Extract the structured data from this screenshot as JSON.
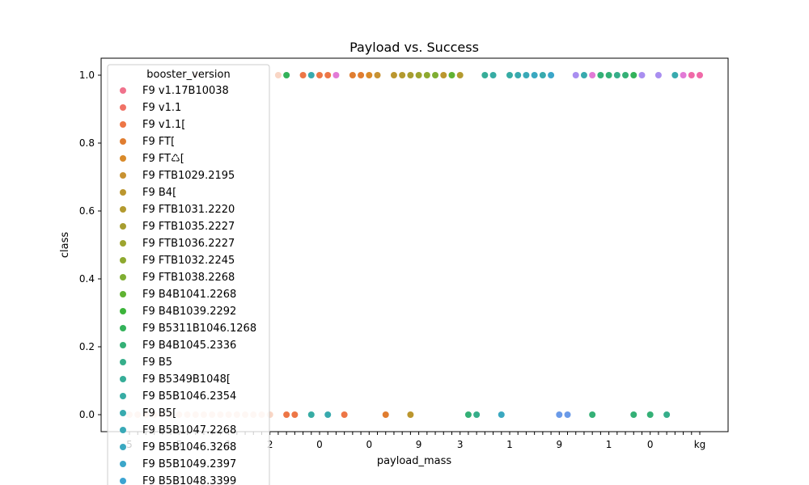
{
  "chart_data": {
    "type": "scatter",
    "title": "Payload vs. Success",
    "xlabel": "payload_mass",
    "ylabel": "class",
    "ylim": [
      -0.05,
      1.05
    ],
    "yticks": [
      0.0,
      0.2,
      0.4,
      0.6,
      0.8,
      1.0
    ],
    "ytick_labels": [
      "0.0",
      "0.2",
      "0.4",
      "0.6",
      "0.8",
      "1.0"
    ],
    "x_axis": "categorical, 70 payload mass categories (index 0-69); tick labels overlap and are illegible",
    "xtick_labels_visible": [
      "5",
      "5",
      "1",
      "2",
      "0",
      "0",
      "9",
      "3",
      "1",
      "9",
      "1",
      "0",
      "kg"
    ],
    "grid": false,
    "legend": {
      "title": "booster_version",
      "placement": "upper-left",
      "entries": [
        {
          "label": "F9 v1.17B10038",
          "color": "#f0728c"
        },
        {
          "label": "F9 v1.1",
          "color": "#f07266"
        },
        {
          "label": "F9 v1.1[",
          "color": "#ed7646"
        },
        {
          "label": "F9 FT[",
          "color": "#e07d30"
        },
        {
          "label": "F9 FT♺[",
          "color": "#d98a2a"
        },
        {
          "label": "F9 FTB1029.2195",
          "color": "#c89232"
        },
        {
          "label": "F9 B4[",
          "color": "#bb962e"
        },
        {
          "label": "F9 FTB1031.2220",
          "color": "#b39a2f"
        },
        {
          "label": "F9 FTB1035.2227",
          "color": "#a79d30"
        },
        {
          "label": "F9 FTB1036.2227",
          "color": "#9da42f"
        },
        {
          "label": "F9 FTB1032.2245",
          "color": "#8ea92f"
        },
        {
          "label": "F9 FTB1038.2268",
          "color": "#7fae32"
        },
        {
          "label": "F9 B4B1041.2268",
          "color": "#5fb232"
        },
        {
          "label": "F9 B4B1039.2292",
          "color": "#3cb43a"
        },
        {
          "label": "F9 B5311B1046.1268",
          "color": "#33b25a"
        },
        {
          "label": "F9 B4B1045.2336",
          "color": "#34b076"
        },
        {
          "label": "F9 B5",
          "color": "#36ae8a"
        },
        {
          "label": "F9 B5349B1048[",
          "color": "#36ad98"
        },
        {
          "label": "F9 B5B1046.2354",
          "color": "#37aca4"
        },
        {
          "label": "F9 B5[",
          "color": "#38aaae"
        },
        {
          "label": "F9 B5B1047.2268",
          "color": "#39a9b7"
        },
        {
          "label": "F9 B5B1046.3268",
          "color": "#3aa8c0"
        },
        {
          "label": "F9 B5B1049.2397",
          "color": "#3ba6c9"
        },
        {
          "label": "F9 B5B1048.3399",
          "color": "#3ca4d2"
        }
      ]
    },
    "series_extra_colors": [
      "#6a9ae8",
      "#8c8ef0",
      "#a98ef0",
      "#c586ee",
      "#e27ad6",
      "#f06aa8",
      "#f9d6c5"
    ],
    "points": [
      {
        "x": 0,
        "y": 0,
        "c": "#f9d6c5"
      },
      {
        "x": 1,
        "y": 0,
        "c": "#f9d6c5"
      },
      {
        "x": 2,
        "y": 0,
        "c": "#f9d6c5"
      },
      {
        "x": 3,
        "y": 0,
        "c": "#f9d6c5"
      },
      {
        "x": 4,
        "y": 0,
        "c": "#f9d6c5"
      },
      {
        "x": 5,
        "y": 0,
        "c": "#f9d6c5"
      },
      {
        "x": 6,
        "y": 0,
        "c": "#f9d6c5"
      },
      {
        "x": 7,
        "y": 0,
        "c": "#f9d6c5"
      },
      {
        "x": 8,
        "y": 0,
        "c": "#f9d6c5"
      },
      {
        "x": 8,
        "y": 1,
        "c": "#f9d6c5"
      },
      {
        "x": 9,
        "y": 0,
        "c": "#f9d6c5"
      },
      {
        "x": 10,
        "y": 0,
        "c": "#f9d6c5"
      },
      {
        "x": 11,
        "y": 0,
        "c": "#f9d6c5"
      },
      {
        "x": 12,
        "y": 0,
        "c": "#f9d6c5"
      },
      {
        "x": 13,
        "y": 0,
        "c": "#f9d6c5"
      },
      {
        "x": 14,
        "y": 0,
        "c": "#f9d6c5"
      },
      {
        "x": 15,
        "y": 0,
        "c": "#f9d6c5"
      },
      {
        "x": 16,
        "y": 0,
        "c": "#f9d6c5"
      },
      {
        "x": 17,
        "y": 0,
        "c": "#f9d6c5"
      },
      {
        "x": 18,
        "y": 1,
        "c": "#f9d6c5"
      },
      {
        "x": 19,
        "y": 0,
        "c": "#ed7646"
      },
      {
        "x": 19,
        "y": 1,
        "c": "#33b25a"
      },
      {
        "x": 20,
        "y": 0,
        "c": "#ed7646"
      },
      {
        "x": 21,
        "y": 1,
        "c": "#ed7646"
      },
      {
        "x": 22,
        "y": 0,
        "c": "#37aca4"
      },
      {
        "x": 22,
        "y": 1,
        "c": "#38aaae"
      },
      {
        "x": 23,
        "y": 1,
        "c": "#ed7646"
      },
      {
        "x": 24,
        "y": 0,
        "c": "#38aaae"
      },
      {
        "x": 24,
        "y": 1,
        "c": "#ed7646"
      },
      {
        "x": 25,
        "y": 1,
        "c": "#e27ad6"
      },
      {
        "x": 26,
        "y": 0,
        "c": "#ed7646"
      },
      {
        "x": 27,
        "y": 1,
        "c": "#e07d30"
      },
      {
        "x": 28,
        "y": 1,
        "c": "#e07d30"
      },
      {
        "x": 29,
        "y": 1,
        "c": "#d98a2a"
      },
      {
        "x": 30,
        "y": 1,
        "c": "#c89232"
      },
      {
        "x": 31,
        "y": 0,
        "c": "#e07d30"
      },
      {
        "x": 32,
        "y": 1,
        "c": "#bb962e"
      },
      {
        "x": 33,
        "y": 1,
        "c": "#b39a2f"
      },
      {
        "x": 34,
        "y": 0,
        "c": "#bb962e"
      },
      {
        "x": 34,
        "y": 1,
        "c": "#a79d30"
      },
      {
        "x": 35,
        "y": 1,
        "c": "#9da42f"
      },
      {
        "x": 36,
        "y": 1,
        "c": "#8ea92f"
      },
      {
        "x": 37,
        "y": 1,
        "c": "#7fae32"
      },
      {
        "x": 38,
        "y": 1,
        "c": "#bb962e"
      },
      {
        "x": 39,
        "y": 1,
        "c": "#5fb232"
      },
      {
        "x": 40,
        "y": 1,
        "c": "#b39a2f"
      },
      {
        "x": 41,
        "y": 0,
        "c": "#34b076"
      },
      {
        "x": 42,
        "y": 0,
        "c": "#36ae8a"
      },
      {
        "x": 43,
        "y": 1,
        "c": "#36ad98"
      },
      {
        "x": 44,
        "y": 1,
        "c": "#37aca4"
      },
      {
        "x": 45,
        "y": 0,
        "c": "#3aa8c0"
      },
      {
        "x": 46,
        "y": 1,
        "c": "#37aca4"
      },
      {
        "x": 47,
        "y": 1,
        "c": "#38aaae"
      },
      {
        "x": 48,
        "y": 1,
        "c": "#39a9b7"
      },
      {
        "x": 49,
        "y": 1,
        "c": "#3aa8c0"
      },
      {
        "x": 50,
        "y": 1,
        "c": "#38aaae"
      },
      {
        "x": 51,
        "y": 1,
        "c": "#3ba6c9"
      },
      {
        "x": 52,
        "y": 0,
        "c": "#6a9ae8"
      },
      {
        "x": 53,
        "y": 0,
        "c": "#6a9ae8"
      },
      {
        "x": 54,
        "y": 1,
        "c": "#a98ef0"
      },
      {
        "x": 55,
        "y": 1,
        "c": "#38aaae"
      },
      {
        "x": 56,
        "y": 0,
        "c": "#34b076"
      },
      {
        "x": 56,
        "y": 1,
        "c": "#e27ad6"
      },
      {
        "x": 57,
        "y": 1,
        "c": "#34b076"
      },
      {
        "x": 58,
        "y": 1,
        "c": "#34b076"
      },
      {
        "x": 59,
        "y": 1,
        "c": "#36ae8a"
      },
      {
        "x": 60,
        "y": 1,
        "c": "#34b076"
      },
      {
        "x": 61,
        "y": 0,
        "c": "#34b076"
      },
      {
        "x": 61,
        "y": 1,
        "c": "#33b25a"
      },
      {
        "x": 62,
        "y": 1,
        "c": "#a98ef0"
      },
      {
        "x": 63,
        "y": 0,
        "c": "#34b076"
      },
      {
        "x": 64,
        "y": 1,
        "c": "#a98ef0"
      },
      {
        "x": 65,
        "y": 0,
        "c": "#36ae8a"
      },
      {
        "x": 66,
        "y": 1,
        "c": "#38aaae"
      },
      {
        "x": 67,
        "y": 1,
        "c": "#e27ad6"
      },
      {
        "x": 68,
        "y": 1,
        "c": "#f06aa8"
      },
      {
        "x": 69,
        "y": 1,
        "c": "#f06aa8"
      }
    ]
  }
}
